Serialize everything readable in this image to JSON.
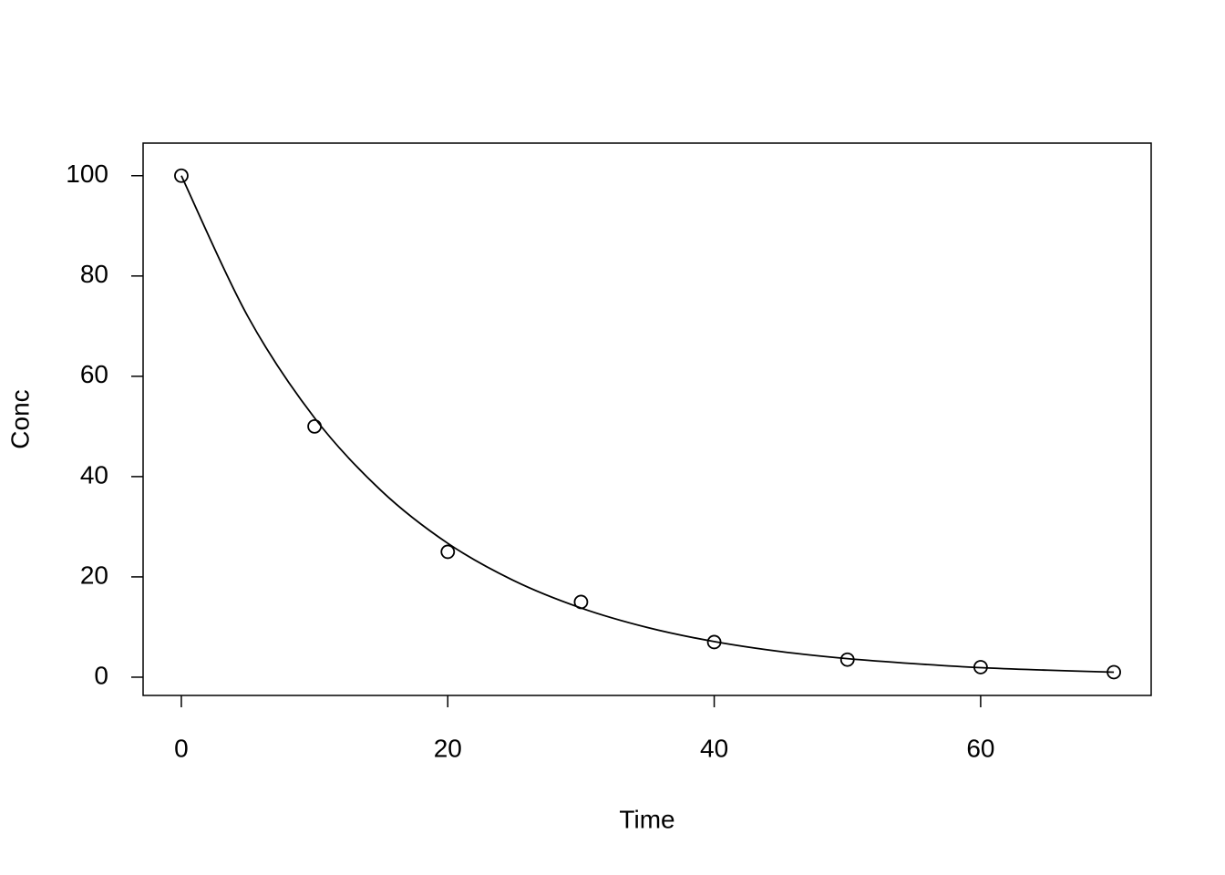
{
  "chart_data": {
    "type": "scatter",
    "xlabel": "Time",
    "ylabel": "Conc",
    "points": {
      "x": [
        0,
        10,
        20,
        30,
        40,
        50,
        60,
        70
      ],
      "values": [
        100,
        50,
        25,
        15,
        7,
        3.5,
        2,
        1
      ],
      "color": "#000000"
    },
    "curve": {
      "x": [
        0,
        5,
        10,
        15,
        20,
        25,
        30,
        35,
        40,
        45,
        50,
        55,
        60,
        65,
        70
      ],
      "values": [
        100,
        71.9,
        51.7,
        37.2,
        26.7,
        19.2,
        13.8,
        9.9,
        7.1,
        5.1,
        3.7,
        2.7,
        1.9,
        1.4,
        1.0
      ],
      "color": "#000000"
    },
    "xlim": [
      -2.87,
      72.8
    ],
    "xticks": [
      0,
      20,
      40,
      60
    ],
    "ylim": [
      -3.64,
      106.5
    ],
    "yticks": [
      0,
      20,
      40,
      60,
      80,
      100
    ],
    "grid": false
  }
}
